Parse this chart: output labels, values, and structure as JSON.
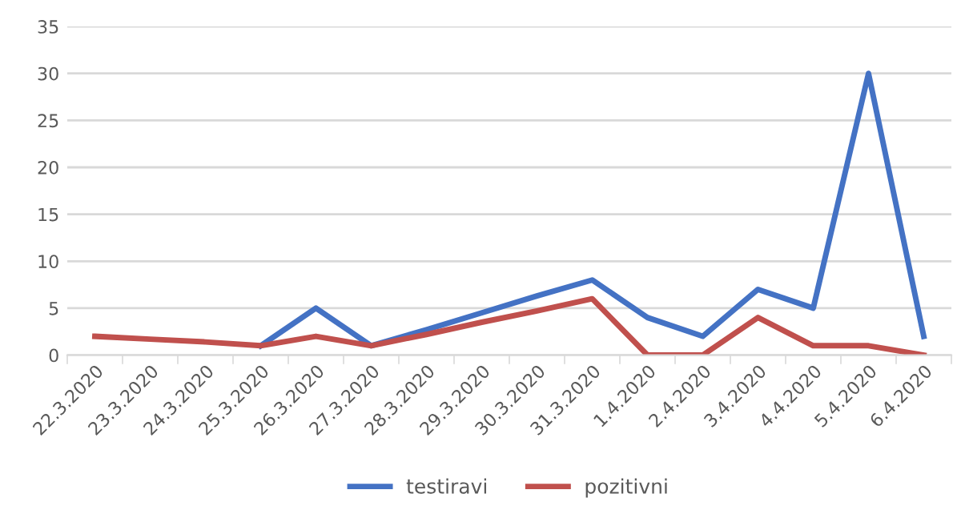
{
  "chart_data": {
    "type": "line",
    "categories": [
      "22.3.2020",
      "23.3.2020",
      "24.3.2020",
      "25.3.2020",
      "26.3.2020",
      "27.3.2020",
      "28.3.2020",
      "29.3.2020",
      "30.3.2020",
      "31.3.2020",
      "1.4.2020",
      "2.4.2020",
      "3.4.2020",
      "4.4.2020",
      "5.4.2020",
      "6.4.2020"
    ],
    "series": [
      {
        "name": "testiravi",
        "color": "#4472c4",
        "values": [
          null,
          null,
          null,
          1,
          5,
          1,
          2.7,
          4.5,
          6.3,
          8,
          4,
          2,
          7,
          5,
          30,
          2
        ]
      },
      {
        "name": "pozitivni",
        "color": "#c0504d",
        "values": [
          2,
          1.7,
          1.4,
          1,
          2,
          1,
          2.2,
          3.5,
          4.7,
          6,
          0,
          0,
          4,
          1,
          1,
          0
        ]
      }
    ],
    "ylim": [
      0,
      35
    ],
    "yticks": [
      0,
      5,
      10,
      15,
      20,
      25,
      30,
      35
    ],
    "grid": "y",
    "legend": "bottom",
    "marker": "none",
    "line_style": "solid"
  }
}
